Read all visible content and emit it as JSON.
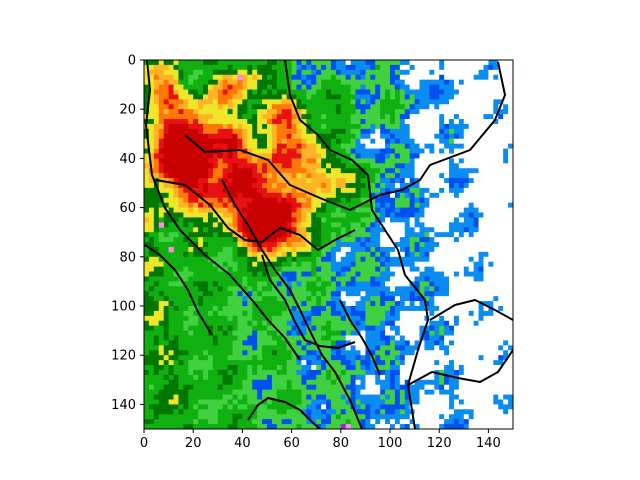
{
  "chart_data": {
    "type": "heatmap",
    "title": "",
    "xlabel": "",
    "ylabel": "",
    "xlim": [
      0,
      150
    ],
    "ylim": [
      150,
      0
    ],
    "x_ticks": [
      "0",
      "20",
      "40",
      "60",
      "80",
      "100",
      "120",
      "140"
    ],
    "y_ticks": [
      "0",
      "20",
      "40",
      "60",
      "80",
      "100",
      "120",
      "140"
    ],
    "grid": false,
    "colormap": [
      "#ffffff",
      "#0a8cf0",
      "#0050f0",
      "#40d040",
      "#10b010",
      "#007800",
      "#f0e628",
      "#ffb428",
      "#ff7808",
      "#e81010",
      "#c80000",
      "#ff8cd8",
      "#a020f0"
    ],
    "description_source": "radar reflectivity mosaic with black border overlay"
  }
}
